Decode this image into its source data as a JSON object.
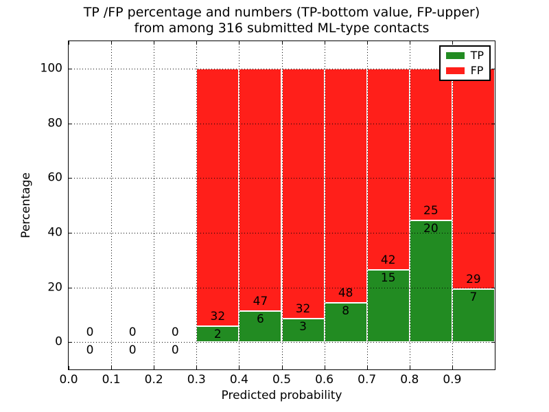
{
  "figure": {
    "title_line1": "TP /FP percentage and numbers (TP-bottom value, FP-upper)",
    "title_line2": "from among 316 submitted ML-type contacts",
    "background_color": "#ffffff"
  },
  "axes": {
    "xlabel": "Predicted probability",
    "ylabel": "Percentage",
    "x_ticks": [
      {
        "value": 0.0,
        "label": "0.0"
      },
      {
        "value": 0.1,
        "label": "0.1"
      },
      {
        "value": 0.2,
        "label": "0.2"
      },
      {
        "value": 0.3,
        "label": "0.3"
      },
      {
        "value": 0.4,
        "label": "0.4"
      },
      {
        "value": 0.5,
        "label": "0.5"
      },
      {
        "value": 0.6,
        "label": "0.6"
      },
      {
        "value": 0.7,
        "label": "0.7"
      },
      {
        "value": 0.8,
        "label": "0.8"
      },
      {
        "value": 0.9,
        "label": "0.9"
      }
    ],
    "y_ticks": [
      {
        "value": 0,
        "label": "0"
      },
      {
        "value": 20,
        "label": "20"
      },
      {
        "value": 40,
        "label": "40"
      },
      {
        "value": 60,
        "label": "60"
      },
      {
        "value": 80,
        "label": "80"
      },
      {
        "value": 100,
        "label": "100"
      }
    ],
    "grid": "dotted black",
    "tick_direction": "in"
  },
  "legend": {
    "position": "upper right",
    "items": [
      {
        "label": "TP",
        "color": "#228b22"
      },
      {
        "label": "FP",
        "color": "#ff1f1a"
      }
    ]
  },
  "chart_data": {
    "type": "bar",
    "stacked": true,
    "normalization": "each non-empty bin stacks to 100 percent; bar heights are TP/FP share of bin total",
    "title": "TP /FP percentage and numbers (TP-bottom value, FP-upper) from among 316 submitted ML-type contacts",
    "xlabel": "Predicted probability",
    "ylabel": "Percentage",
    "xlim": [
      0.0,
      1.0
    ],
    "ylim": [
      -10,
      110
    ],
    "grid": true,
    "legend_position": "upper right",
    "total_contacts": 316,
    "bin_edges": [
      0.0,
      0.1,
      0.2,
      0.3,
      0.4,
      0.5,
      0.6,
      0.7,
      0.8,
      0.9,
      1.0
    ],
    "series": [
      {
        "name": "TP",
        "color": "#228b22",
        "counts": [
          0,
          0,
          0,
          2,
          6,
          3,
          8,
          15,
          20,
          7
        ]
      },
      {
        "name": "FP",
        "color": "#ff1f1a",
        "counts": [
          0,
          0,
          0,
          32,
          47,
          32,
          48,
          42,
          25,
          29
        ]
      }
    ],
    "tp_percent_by_bin": [
      0,
      0,
      0,
      5.88,
      11.32,
      8.57,
      14.29,
      26.32,
      44.44,
      19.44
    ],
    "annotation_rule": "FP count printed above the TP/FP boundary, TP count printed below it; empty bins show 0 above and 0 below the zero line"
  }
}
